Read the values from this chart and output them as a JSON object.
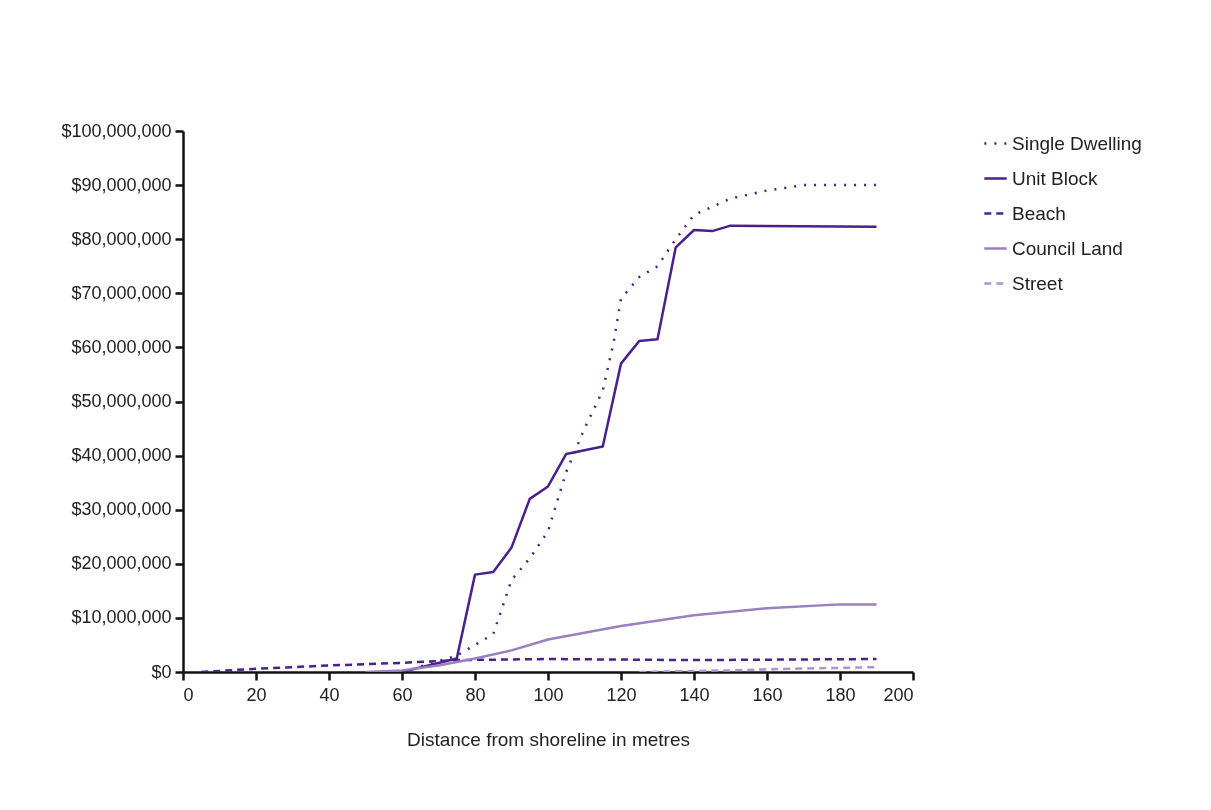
{
  "chart_data": {
    "type": "line",
    "xlabel": "Distance from shoreline in metres",
    "xlim": [
      0,
      200
    ],
    "xticks": [
      0,
      20,
      40,
      60,
      80,
      100,
      120,
      140,
      160,
      180,
      200
    ],
    "ylim": [
      0,
      100000000
    ],
    "yticks": [
      {
        "value": 0,
        "label": "$0"
      },
      {
        "value": 10000000,
        "label": "$10,000,000"
      },
      {
        "value": 20000000,
        "label": "$20,000,000"
      },
      {
        "value": 30000000,
        "label": "$30,000,000"
      },
      {
        "value": 40000000,
        "label": "$40,000,000"
      },
      {
        "value": 50000000,
        "label": "$50,000,000"
      },
      {
        "value": 60000000,
        "label": "$60,000,000"
      },
      {
        "value": 70000000,
        "label": "$70,000,000"
      },
      {
        "value": 80000000,
        "label": "$80,000,000"
      },
      {
        "value": 90000000,
        "label": "$90,000,000"
      },
      {
        "value": 100000000,
        "label": "$100,000,000"
      }
    ],
    "grid": false,
    "legend": "right",
    "series": [
      {
        "name": "Single Dwelling",
        "color": "#4b1f8c",
        "line_style": "dotted",
        "x": [
          60,
          75,
          80,
          85,
          90,
          95,
          100,
          105,
          110,
          115,
          118,
          120,
          125,
          130,
          135,
          140,
          150,
          160,
          170,
          190
        ],
        "values": [
          0,
          3000000,
          5000000,
          7000000,
          17000000,
          21000000,
          26000000,
          37000000,
          45000000,
          52000000,
          61000000,
          69000000,
          73000000,
          75000000,
          80000000,
          84500000,
          87500000,
          89000000,
          90000000,
          90000000
        ]
      },
      {
        "name": "Unit Block",
        "color": "#4b1f8c",
        "line_style": "solid",
        "x": [
          60,
          75,
          80,
          85,
          90,
          95,
          100,
          105,
          115,
          120,
          125,
          130,
          135,
          140,
          145,
          150,
          190
        ],
        "values": [
          0,
          2500000,
          18000000,
          18500000,
          23000000,
          32000000,
          34300000,
          40300000,
          41700000,
          57000000,
          61200000,
          61500000,
          78500000,
          81700000,
          81500000,
          82500000,
          82300000
        ]
      },
      {
        "name": "Beach",
        "color": "#4b1f8c",
        "line_style": "dashed",
        "x": [
          5,
          20,
          40,
          60,
          75,
          100,
          140,
          190
        ],
        "values": [
          0,
          600000,
          1200000,
          1700000,
          2200000,
          2400000,
          2200000,
          2400000
        ]
      },
      {
        "name": "Council Land",
        "color": "#9a80c0",
        "line_style": "solid",
        "x": [
          50,
          60,
          70,
          80,
          90,
          100,
          120,
          140,
          160,
          180,
          190
        ],
        "values": [
          0,
          300000,
          1200000,
          2500000,
          4000000,
          6000000,
          8500000,
          10500000,
          11800000,
          12500000,
          12500000
        ]
      },
      {
        "name": "Street",
        "color": "#a896cc",
        "line_style": "dashed",
        "x": [
          125,
          150,
          160,
          190
        ],
        "values": [
          0,
          300000,
          500000,
          900000
        ]
      }
    ]
  }
}
